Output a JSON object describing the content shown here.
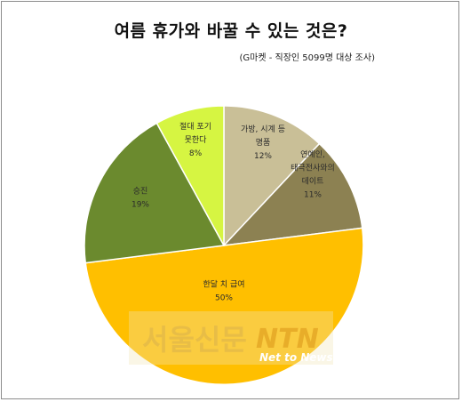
{
  "chart_data": {
    "type": "pie",
    "title": "여름 휴가와 바꿀 수 있는  것은?",
    "subtitle": "(G마켓 - 직장인 5099명 대상 조사)",
    "slices": [
      {
        "label_lines": [
          "가방, 시계 등",
          "명품"
        ],
        "value": 12,
        "value_label": "12%",
        "color": "#c9bf97"
      },
      {
        "label_lines": [
          "연예인,",
          "태극전사와의",
          "데이트"
        ],
        "value": 11,
        "value_label": "11%",
        "color": "#8c8152"
      },
      {
        "label_lines": [
          "한달 치 급여"
        ],
        "value": 50,
        "value_label": "50%",
        "color": "#ffbf00"
      },
      {
        "label_lines": [
          "승진"
        ],
        "value": 19,
        "value_label": "19%",
        "color": "#6b8a2e"
      },
      {
        "label_lines": [
          "절대 포기",
          "못한다"
        ],
        "value": 8,
        "value_label": "8%",
        "color": "#d6f542"
      }
    ],
    "start": "12 o'clock",
    "direction": "clockwise",
    "legend": "none"
  },
  "watermark": {
    "korean": "서울신문",
    "brand": "NTN",
    "tagline": "Net to News"
  }
}
